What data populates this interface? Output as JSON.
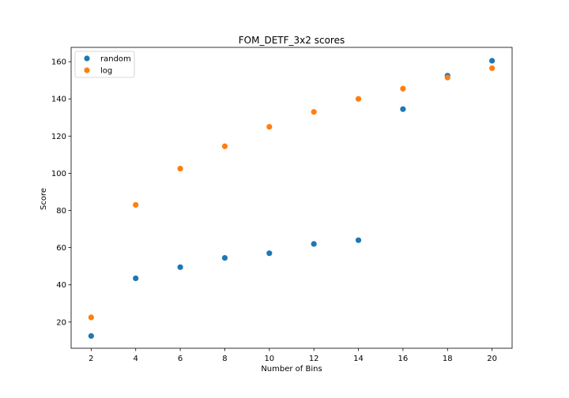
{
  "chart_data": {
    "type": "scatter",
    "title": "FOM_DETF_3x2 scores",
    "xlabel": "Number of Bins",
    "ylabel": "Score",
    "xlim": [
      1.1,
      20.9
    ],
    "ylim": [
      5.9,
      167.7
    ],
    "xticks": [
      2,
      4,
      6,
      8,
      10,
      12,
      14,
      16,
      18,
      20
    ],
    "yticks": [
      20,
      40,
      60,
      80,
      100,
      120,
      140,
      160
    ],
    "grid": false,
    "legend_position": "top-left",
    "series": [
      {
        "name": "random",
        "color": "#1f77b4",
        "x": [
          2,
          4,
          6,
          8,
          10,
          12,
          14,
          16,
          18,
          20
        ],
        "y": [
          12.5,
          43.5,
          49.5,
          54.5,
          57.0,
          62.0,
          64.0,
          134.5,
          152.5,
          160.5
        ]
      },
      {
        "name": "log",
        "color": "#ff7f0e",
        "x": [
          2,
          4,
          6,
          8,
          10,
          12,
          14,
          16,
          18,
          20
        ],
        "y": [
          22.5,
          83.0,
          102.5,
          114.5,
          125.0,
          133.0,
          140.0,
          145.5,
          151.5,
          156.5
        ]
      }
    ]
  }
}
